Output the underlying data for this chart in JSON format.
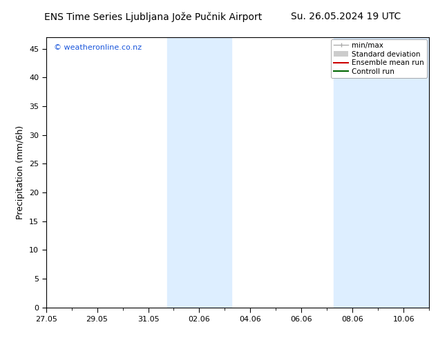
{
  "title_left": "ENS Time Series Ljubljana Jože Pučnik Airport",
  "title_right": "Su. 26.05.2024 19 UTC",
  "ylabel": "Precipitation (mm/6h)",
  "watermark": "© weatheronline.co.nz",
  "background_color": "#ffffff",
  "plot_bg_color": "#ffffff",
  "ylim": [
    0,
    47
  ],
  "yticks": [
    0,
    5,
    10,
    15,
    20,
    25,
    30,
    35,
    40,
    45
  ],
  "xtick_labels": [
    "27.05",
    "29.05",
    "31.05",
    "02.06",
    "04.06",
    "06.06",
    "08.06",
    "10.06"
  ],
  "xtick_positions": [
    0,
    2,
    4,
    6,
    8,
    10,
    12,
    14
  ],
  "x_min": 0,
  "x_max": 15.0,
  "shaded_band1_x0": 4.75,
  "shaded_band1_x1": 7.25,
  "shaded_band2_x0": 11.25,
  "shaded_band2_x1": 15.0,
  "shaded_color": "#ddeeff",
  "watermark_color": "#1a56db",
  "title_fontsize": 10,
  "label_fontsize": 9,
  "tick_fontsize": 8,
  "legend_fontsize": 7.5
}
